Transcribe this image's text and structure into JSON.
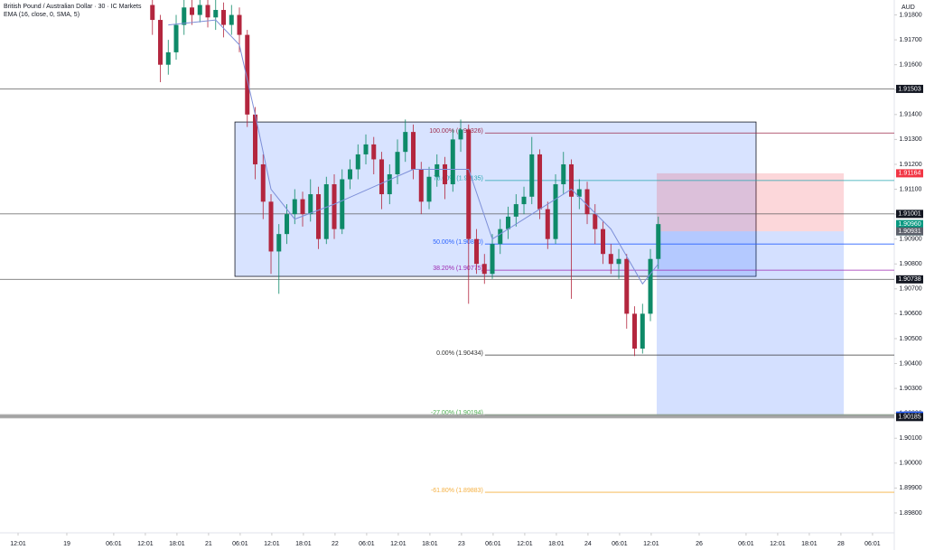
{
  "chart_data": {
    "type": "candlestick",
    "title": "British Pound / Australian Dollar · 30 · IC Markets",
    "indicator": "EMA (16, close, 0, SMA, 5)",
    "currency": "AUD",
    "up_color": "#0e8a68",
    "down_color": "#b3263e",
    "x": [
      51,
      54,
      57,
      60,
      63,
      66,
      69,
      72,
      75,
      78,
      81,
      84,
      87,
      90,
      93,
      96,
      99,
      102,
      105,
      108,
      111,
      114,
      117,
      120,
      123,
      126,
      129,
      132,
      135,
      138,
      141,
      144,
      147,
      150,
      153,
      156,
      159,
      162,
      165,
      168,
      171,
      174,
      177,
      180,
      183,
      186,
      189,
      192,
      195,
      198,
      201,
      204,
      207,
      210,
      213,
      216,
      219,
      222,
      225,
      228,
      231,
      234,
      237,
      240,
      243
    ],
    "open": [
      1.9184,
      1.9178,
      1.916,
      1.9165,
      1.9176,
      1.9183,
      1.918,
      1.9184,
      1.9179,
      1.9182,
      1.9176,
      1.918,
      1.9172,
      1.914,
      1.912,
      1.9105,
      1.9085,
      1.9092,
      1.91,
      1.9106,
      1.91,
      1.9108,
      1.909,
      1.9112,
      1.9094,
      1.9114,
      1.9118,
      1.9124,
      1.9128,
      1.9122,
      1.9108,
      1.9116,
      1.9125,
      1.9133,
      1.9118,
      1.9105,
      1.9115,
      1.912,
      1.9112,
      1.913,
      1.9134,
      1.909,
      1.908,
      1.9076,
      1.9088,
      1.9094,
      1.9099,
      1.9104,
      1.9107,
      1.9124,
      1.9102,
      1.909,
      1.9112,
      1.912,
      1.9107,
      1.911,
      1.91,
      1.9094,
      1.9084,
      1.908,
      1.9082,
      1.906,
      1.9046,
      1.906,
      1.9082
    ],
    "high": [
      1.9188,
      1.918,
      1.917,
      1.918,
      1.9187,
      1.9188,
      1.9188,
      1.9187,
      1.9186,
      1.9185,
      1.9184,
      1.9183,
      1.9174,
      1.9143,
      1.9124,
      1.9108,
      1.9096,
      1.9104,
      1.911,
      1.9109,
      1.9114,
      1.9111,
      1.9115,
      1.9116,
      1.9118,
      1.9122,
      1.9128,
      1.9132,
      1.9131,
      1.9125,
      1.912,
      1.913,
      1.9138,
      1.9136,
      1.9121,
      1.9119,
      1.9124,
      1.9123,
      1.9134,
      1.9138,
      1.9136,
      1.9094,
      1.9084,
      1.9092,
      1.9098,
      1.9103,
      1.9108,
      1.9111,
      1.9131,
      1.9126,
      1.9105,
      1.9116,
      1.9125,
      1.9122,
      1.9114,
      1.9113,
      1.9104,
      1.9097,
      1.9088,
      1.9086,
      1.9084,
      1.9063,
      1.9064,
      1.9086,
      1.9099
    ],
    "low": [
      1.9172,
      1.9153,
      1.9156,
      1.9162,
      1.9172,
      1.9176,
      1.9177,
      1.9175,
      1.9174,
      1.9171,
      1.9172,
      1.9165,
      1.9135,
      1.9114,
      1.9098,
      1.9076,
      1.9068,
      1.9088,
      1.9096,
      1.9095,
      1.9097,
      1.9086,
      1.9088,
      1.909,
      1.9092,
      1.911,
      1.9114,
      1.912,
      1.9116,
      1.9102,
      1.9104,
      1.9112,
      1.9121,
      1.9114,
      1.91,
      1.9102,
      1.9111,
      1.9106,
      1.9109,
      1.9125,
      1.9064,
      1.9076,
      1.9072,
      1.9074,
      1.9084,
      1.909,
      1.9095,
      1.91,
      1.9104,
      1.9098,
      1.9086,
      1.9088,
      1.9108,
      1.9066,
      1.9102,
      1.9096,
      1.9088,
      1.908,
      1.9076,
      1.9074,
      1.9054,
      1.9043,
      1.9044,
      1.9057,
      1.9078
    ],
    "close": [
      1.9178,
      1.916,
      1.9165,
      1.9176,
      1.9183,
      1.918,
      1.9184,
      1.9179,
      1.9182,
      1.9176,
      1.918,
      1.9172,
      1.914,
      1.912,
      1.9105,
      1.9085,
      1.9092,
      1.91,
      1.9106,
      1.91,
      1.9108,
      1.909,
      1.9112,
      1.9094,
      1.9114,
      1.9118,
      1.9124,
      1.9128,
      1.9122,
      1.9108,
      1.9116,
      1.9125,
      1.9133,
      1.9118,
      1.9105,
      1.9115,
      1.912,
      1.9112,
      1.913,
      1.9134,
      1.909,
      1.908,
      1.9076,
      1.9088,
      1.9094,
      1.9099,
      1.9104,
      1.9107,
      1.9124,
      1.9102,
      1.909,
      1.9112,
      1.912,
      1.9107,
      1.911,
      1.91,
      1.9094,
      1.9084,
      1.908,
      1.9082,
      1.906,
      1.9046,
      1.906,
      1.9082,
      1.9096
    ],
    "ema": {
      "color": "#7d8fd8",
      "x": [
        57,
        75,
        84,
        90,
        96,
        105,
        120,
        150,
        171,
        180,
        195,
        210,
        225,
        237,
        243
      ],
      "values": [
        1.9176,
        1.9178,
        1.9168,
        1.914,
        1.911,
        1.9098,
        1.9104,
        1.9118,
        1.9118,
        1.909,
        1.91,
        1.911,
        1.9094,
        1.9072,
        1.908
      ]
    },
    "xlim": [
      -6.86,
      332.56
    ],
    "xticks": [
      {
        "value": 0,
        "label": "12:01"
      },
      {
        "value": 18.5,
        "label": "19"
      },
      {
        "value": 36.3,
        "label": "06:01"
      },
      {
        "value": 48.3,
        "label": "12:01"
      },
      {
        "value": 60.3,
        "label": "18:01"
      },
      {
        "value": 72.3,
        "label": "21"
      },
      {
        "value": 84.3,
        "label": "06:01"
      },
      {
        "value": 96.3,
        "label": "12:01"
      },
      {
        "value": 108.3,
        "label": "18:01"
      },
      {
        "value": 120.3,
        "label": "22"
      },
      {
        "value": 132.3,
        "label": "06:01"
      },
      {
        "value": 144.3,
        "label": "12:01"
      },
      {
        "value": 156.3,
        "label": "18:01"
      },
      {
        "value": 168.3,
        "label": "23"
      },
      {
        "value": 180.3,
        "label": "06:01"
      },
      {
        "value": 192.3,
        "label": "12:01"
      },
      {
        "value": 204.3,
        "label": "18:01"
      },
      {
        "value": 216.3,
        "label": "24"
      },
      {
        "value": 228.3,
        "label": "06:01"
      },
      {
        "value": 240.3,
        "label": "12:01"
      },
      {
        "value": 258.5,
        "label": "26"
      },
      {
        "value": 276.3,
        "label": "06:01"
      },
      {
        "value": 288.3,
        "label": "12:01"
      },
      {
        "value": 300.3,
        "label": "18:01"
      },
      {
        "value": 312.3,
        "label": "28"
      },
      {
        "value": 324.3,
        "label": "06:01"
      }
    ],
    "ylim": [
      1.8972,
      1.9186
    ],
    "yticks": [
      {
        "value": 1.918,
        "label": "1.91800"
      },
      {
        "value": 1.917,
        "label": "1.91700"
      },
      {
        "value": 1.916,
        "label": "1.91600"
      },
      {
        "value": 1.915,
        "label": "1.91500"
      },
      {
        "value": 1.914,
        "label": "1.91400"
      },
      {
        "value": 1.913,
        "label": "1.91300"
      },
      {
        "value": 1.912,
        "label": "1.91200"
      },
      {
        "value": 1.911,
        "label": "1.91100"
      },
      {
        "value": 1.91,
        "label": "1.91000"
      },
      {
        "value": 1.909,
        "label": "1.90900"
      },
      {
        "value": 1.908,
        "label": "1.90800"
      },
      {
        "value": 1.907,
        "label": "1.90700"
      },
      {
        "value": 1.906,
        "label": "1.90600"
      },
      {
        "value": 1.905,
        "label": "1.90500"
      },
      {
        "value": 1.904,
        "label": "1.90400"
      },
      {
        "value": 1.903,
        "label": "1.90300"
      },
      {
        "value": 1.902,
        "label": "1.90200"
      },
      {
        "value": 1.901,
        "label": "1.90100"
      },
      {
        "value": 1.9,
        "label": "1.90000"
      },
      {
        "value": 1.899,
        "label": "1.89900"
      },
      {
        "value": 1.898,
        "label": "1.89800"
      }
    ],
    "levels": [
      {
        "value": 1.91503,
        "label": "1.91503",
        "color": "#131722",
        "line": "#555"
      },
      {
        "value": 1.91164,
        "label": "1.91164",
        "color": "#f23645"
      },
      {
        "value": 1.91001,
        "label": "1.91001",
        "color": "#131722",
        "line": "#555"
      },
      {
        "value": 1.9096,
        "label": "1.90960",
        "color": "#089981"
      },
      {
        "value": 1.90931,
        "label": "1.90931",
        "color": "#5d606b"
      },
      {
        "value": 1.90738,
        "label": "1.90738",
        "color": "#131722",
        "line": "#555"
      },
      {
        "value": 1.90191,
        "label": "1.90191",
        "color": "#2962ff",
        "line": "#9a9a9a"
      },
      {
        "value": 1.90185,
        "label": "1.90185",
        "color": "#131722",
        "line": "#9a9a9a"
      }
    ],
    "timer": "10:48",
    "range_box": {
      "x": [
        82.3,
        280.1
      ],
      "top": 1.9137,
      "bottom": 1.9075,
      "color": "#2962ff"
    },
    "position": {
      "x": [
        242.4,
        313.4
      ],
      "stop": 1.91164,
      "entry": 1.90931,
      "target": 1.90191
    },
    "fib": {
      "x": [
        177.2,
        332.56
      ],
      "levels": [
        {
          "value": 1.91326,
          "label": "100.00% (1.91326)",
          "color": "#9c2a4a"
        },
        {
          "value": 1.91135,
          "label": "78.60% (1.91135)",
          "color": "#26a6b0"
        },
        {
          "value": 1.9088,
          "label": "50.00% (1.90880)",
          "color": "#2962ff"
        },
        {
          "value": 1.90775,
          "label": "38.20% (1.90775)",
          "color": "#9c27b0"
        },
        {
          "value": 1.90434,
          "label": "0.00% (1.90434)",
          "color": "#333"
        },
        {
          "value": 1.90194,
          "label": "-27.00% (1.90194)",
          "color": "#4caf50"
        },
        {
          "value": 1.89883,
          "label": "-61.80% (1.89883)",
          "color": "#f5b041"
        }
      ]
    }
  }
}
